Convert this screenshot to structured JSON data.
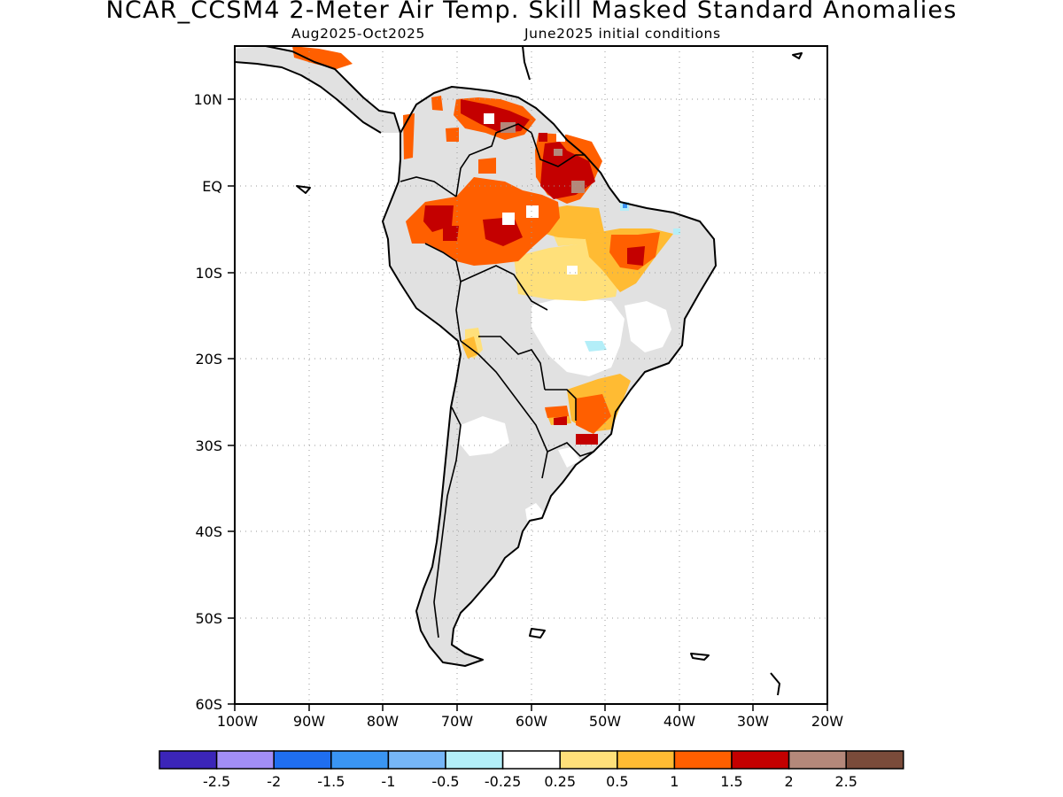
{
  "header": {
    "title": "NCAR_CCSM4 2-Meter Air Temp. Skill Masked Standard Anomalies",
    "period": "Aug2025-Oct2025",
    "init": "June2025 initial conditions"
  },
  "map": {
    "lon_range": [
      -100,
      -20
    ],
    "lat_range": [
      -60,
      15
    ],
    "lat_ticks": [
      "10N",
      "EQ",
      "10S",
      "20S",
      "30S",
      "40S",
      "50S",
      "60S"
    ],
    "lon_ticks": [
      "100W",
      "90W",
      "80W",
      "70W",
      "60W",
      "50W",
      "40W",
      "30W",
      "20W"
    ],
    "grid": "dotted",
    "land_color": "#e1e1e1"
  },
  "colorbar": {
    "colors": [
      "#3b25b8",
      "#a28ef6",
      "#1f6ef0",
      "#3a95f3",
      "#76b6f7",
      "#b3eef8",
      "#ffffff",
      "#ffe07a",
      "#ffbb33",
      "#ff5f00",
      "#c40000",
      "#b4887a",
      "#7a4b3a"
    ],
    "labels": [
      "-2.5",
      "-2",
      "-1.5",
      "-1",
      "-0.5",
      "-0.25",
      "0.25",
      "0.5",
      "1",
      "1.5",
      "2",
      "2.5"
    ]
  }
}
